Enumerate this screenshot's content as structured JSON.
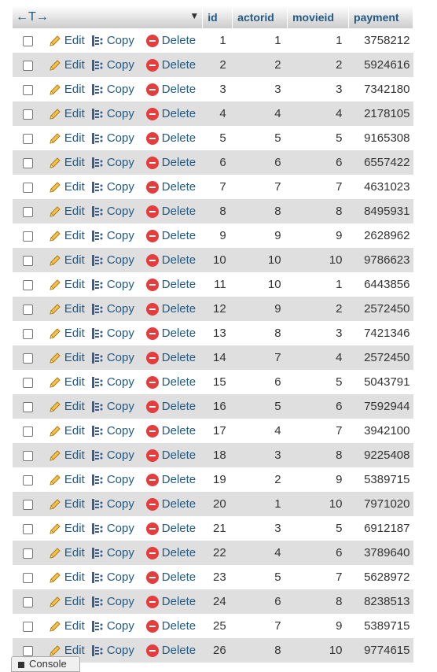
{
  "header": {
    "arrows": "←T→",
    "sort_icon": "sort-down-triangle",
    "columns": [
      "id",
      "actorid",
      "movieid",
      "payment"
    ]
  },
  "actions": {
    "edit": "Edit",
    "copy": "Copy",
    "delete": "Delete"
  },
  "rows": [
    {
      "id": "1",
      "actorid": "1",
      "movieid": "1",
      "payment": "3758212"
    },
    {
      "id": "2",
      "actorid": "2",
      "movieid": "2",
      "payment": "5924616"
    },
    {
      "id": "3",
      "actorid": "3",
      "movieid": "3",
      "payment": "7342180"
    },
    {
      "id": "4",
      "actorid": "4",
      "movieid": "4",
      "payment": "2178105"
    },
    {
      "id": "5",
      "actorid": "5",
      "movieid": "5",
      "payment": "9165308"
    },
    {
      "id": "6",
      "actorid": "6",
      "movieid": "6",
      "payment": "6557422"
    },
    {
      "id": "7",
      "actorid": "7",
      "movieid": "7",
      "payment": "4631023"
    },
    {
      "id": "8",
      "actorid": "8",
      "movieid": "8",
      "payment": "8495931"
    },
    {
      "id": "9",
      "actorid": "9",
      "movieid": "9",
      "payment": "2628962"
    },
    {
      "id": "10",
      "actorid": "10",
      "movieid": "10",
      "payment": "9786623"
    },
    {
      "id": "11",
      "actorid": "10",
      "movieid": "1",
      "payment": "6443856"
    },
    {
      "id": "12",
      "actorid": "9",
      "movieid": "2",
      "payment": "2572450"
    },
    {
      "id": "13",
      "actorid": "8",
      "movieid": "3",
      "payment": "7421346"
    },
    {
      "id": "14",
      "actorid": "7",
      "movieid": "4",
      "payment": "2572450"
    },
    {
      "id": "15",
      "actorid": "6",
      "movieid": "5",
      "payment": "5043791"
    },
    {
      "id": "16",
      "actorid": "5",
      "movieid": "6",
      "payment": "7592944"
    },
    {
      "id": "17",
      "actorid": "4",
      "movieid": "7",
      "payment": "3942100"
    },
    {
      "id": "18",
      "actorid": "3",
      "movieid": "8",
      "payment": "9225408"
    },
    {
      "id": "19",
      "actorid": "2",
      "movieid": "9",
      "payment": "5389715"
    },
    {
      "id": "20",
      "actorid": "1",
      "movieid": "10",
      "payment": "7971020"
    },
    {
      "id": "21",
      "actorid": "3",
      "movieid": "5",
      "payment": "6912187"
    },
    {
      "id": "22",
      "actorid": "4",
      "movieid": "6",
      "payment": "3789640"
    },
    {
      "id": "23",
      "actorid": "5",
      "movieid": "7",
      "payment": "5628972"
    },
    {
      "id": "24",
      "actorid": "6",
      "movieid": "8",
      "payment": "8238513"
    },
    {
      "id": "25",
      "actorid": "7",
      "movieid": "9",
      "payment": "5389715"
    },
    {
      "id": "26",
      "actorid": "8",
      "movieid": "10",
      "payment": "9774615"
    }
  ],
  "console": {
    "label": "Console"
  }
}
